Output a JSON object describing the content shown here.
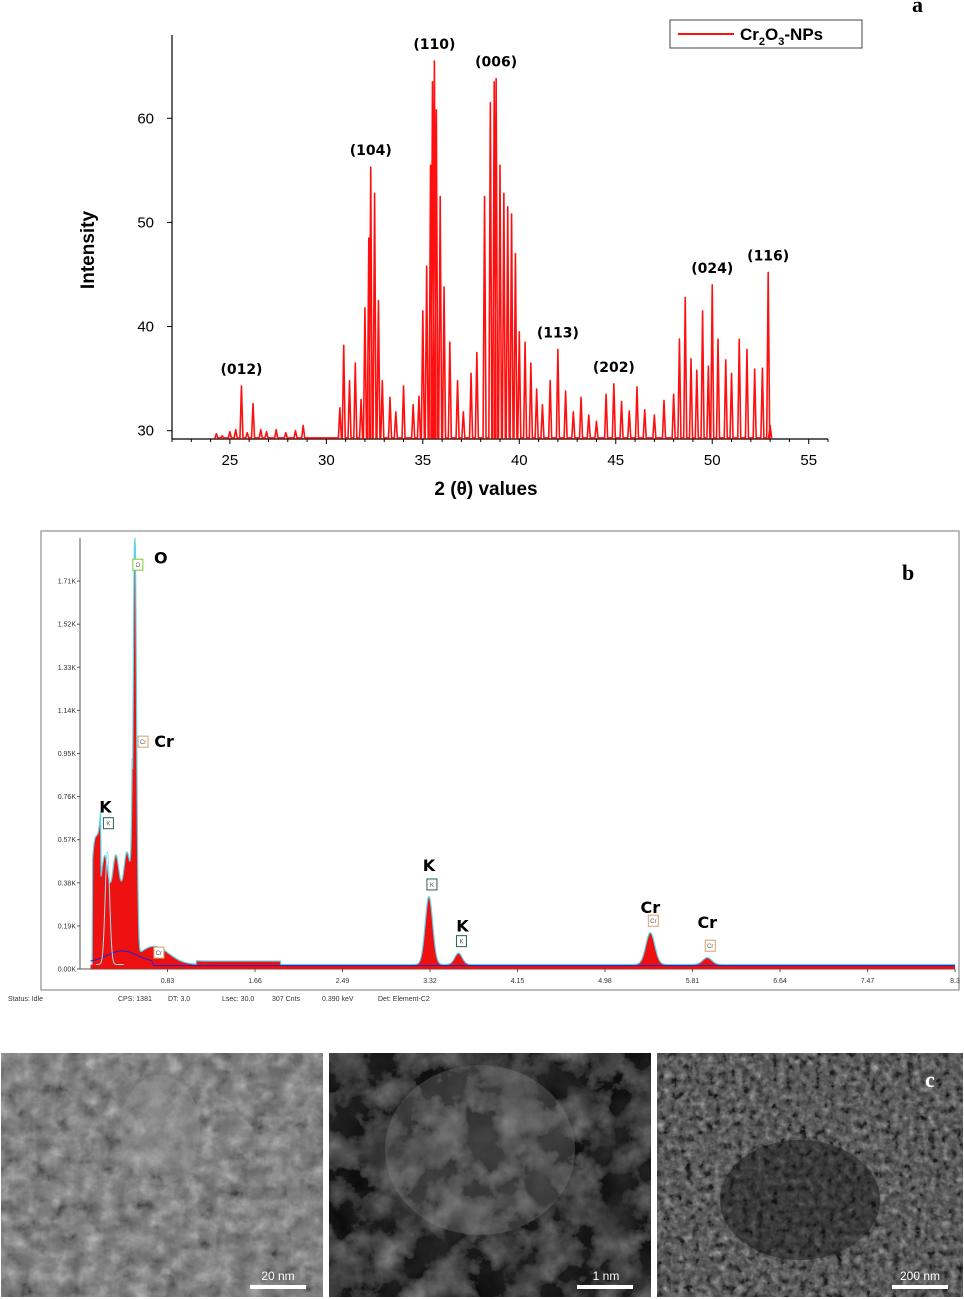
{
  "chart_data": [
    {
      "panel": "a",
      "type": "line",
      "xlabel": "2 (θ) values",
      "ylabel": "Intensity",
      "xlim": [
        22,
        56
      ],
      "ylim": [
        29.2,
        68
      ],
      "xticks": [
        25,
        30,
        35,
        40,
        45,
        50,
        55
      ],
      "yticks": [
        30,
        40,
        50,
        60
      ],
      "legend": {
        "position": "top-right",
        "label_base": "Cr",
        "sub1": "2",
        "mid": "O",
        "sub2": "3",
        "tail": "-NPs"
      },
      "series": [
        {
          "name": "Cr2O3-NPs",
          "color": "#ff1010",
          "peaks": [
            [
              24.3,
              29.7
            ],
            [
              24.6,
              29.5
            ],
            [
              25,
              29.9
            ],
            [
              25.3,
              30.1
            ],
            [
              25.6,
              34.3
            ],
            [
              25.9,
              29.8
            ],
            [
              26.2,
              32.6
            ],
            [
              26.6,
              30.1
            ],
            [
              26.9,
              29.9
            ],
            [
              27.4,
              30.1
            ],
            [
              27.9,
              29.8
            ],
            [
              28.4,
              30
            ],
            [
              28.8,
              30.5
            ],
            [
              30.7,
              32.2
            ],
            [
              30.9,
              38.2
            ],
            [
              31.2,
              34.8
            ],
            [
              31.5,
              36.5
            ],
            [
              31.8,
              33
            ],
            [
              32.0,
              41.8
            ],
            [
              32.2,
              48.5
            ],
            [
              32.3,
              55.3
            ],
            [
              32.5,
              52.8
            ],
            [
              32.7,
              42.5
            ],
            [
              32.9,
              34.8
            ],
            [
              33.3,
              33.2
            ],
            [
              33.6,
              31.8
            ],
            [
              34.0,
              34.3
            ],
            [
              34.5,
              32.5
            ],
            [
              34.8,
              33.3
            ],
            [
              35.0,
              41.5
            ],
            [
              35.2,
              45.8
            ],
            [
              35.4,
              55.5
            ],
            [
              35.5,
              63.5
            ],
            [
              35.6,
              65.5
            ],
            [
              35.7,
              60.8
            ],
            [
              35.9,
              52.5
            ],
            [
              36.1,
              43.8
            ],
            [
              36.4,
              38.5
            ],
            [
              36.8,
              34.8
            ],
            [
              37.1,
              31.8
            ],
            [
              37.5,
              35.5
            ],
            [
              37.8,
              37.5
            ],
            [
              38.2,
              52.5
            ],
            [
              38.5,
              61.5
            ],
            [
              38.7,
              63.5
            ],
            [
              38.8,
              63.8
            ],
            [
              39.0,
              55.5
            ],
            [
              39.2,
              52.8
            ],
            [
              39.4,
              51.5
            ],
            [
              39.6,
              50.8
            ],
            [
              39.8,
              47.0
            ],
            [
              40.0,
              39.5
            ],
            [
              40.3,
              38.5
            ],
            [
              40.6,
              36.5
            ],
            [
              40.9,
              34.0
            ],
            [
              41.2,
              32.5
            ],
            [
              41.6,
              34.8
            ],
            [
              42.0,
              37.8
            ],
            [
              42.4,
              33.8
            ],
            [
              42.8,
              31.8
            ],
            [
              43.2,
              33.2
            ],
            [
              43.6,
              31.5
            ],
            [
              44.0,
              30.9
            ],
            [
              44.5,
              33.5
            ],
            [
              44.9,
              34.5
            ],
            [
              45.3,
              32.8
            ],
            [
              45.7,
              31.9
            ],
            [
              46.1,
              34.2
            ],
            [
              46.5,
              32.0
            ],
            [
              47.0,
              31.5
            ],
            [
              47.5,
              32.9
            ],
            [
              48.0,
              33.5
            ],
            [
              48.3,
              38.8
            ],
            [
              48.6,
              42.8
            ],
            [
              48.9,
              36.9
            ],
            [
              49.2,
              35.8
            ],
            [
              49.5,
              41.5
            ],
            [
              49.8,
              36.2
            ],
            [
              50.0,
              44.0
            ],
            [
              50.3,
              38.8
            ],
            [
              50.7,
              36.8
            ],
            [
              51.0,
              35.5
            ],
            [
              51.4,
              38.8
            ],
            [
              51.8,
              37.8
            ],
            [
              52.2,
              35.9
            ],
            [
              52.6,
              36.0
            ],
            [
              52.9,
              45.2
            ],
            [
              53.0,
              30.5
            ]
          ]
        }
      ],
      "annotations": [
        {
          "label": "(012)",
          "x": 25.6,
          "y": 34.3
        },
        {
          "label": "(104)",
          "x": 32.3,
          "y": 55.3
        },
        {
          "label": "(110)",
          "x": 35.6,
          "y": 65.5
        },
        {
          "label": "(006)",
          "x": 38.8,
          "y": 63.8
        },
        {
          "label": "(113)",
          "x": 42.0,
          "y": 37.8
        },
        {
          "label": "(202)",
          "x": 44.9,
          "y": 34.5
        },
        {
          "label": "(024)",
          "x": 50.0,
          "y": 44.0
        },
        {
          "label": "(116)",
          "x": 52.9,
          "y": 45.2
        }
      ]
    },
    {
      "panel": "b",
      "type": "area",
      "xlim": [
        0,
        8.3
      ],
      "ylim": [
        0,
        1.9
      ],
      "xticks": [
        "0.83",
        "1.66",
        "2.49",
        "3.32",
        "4.15",
        "4.98",
        "5.81",
        "6.64",
        "7.47",
        "8.3"
      ],
      "yticks": [
        "0.00K",
        "0.19K",
        "0.38K",
        "0.57K",
        "0.76K",
        "0.95K",
        "1.14K",
        "1.33K",
        "1.52K",
        "1.71K"
      ],
      "peaks": [
        {
          "element": "O",
          "energy": 0.52,
          "counts": 1.9,
          "tag": "O"
        },
        {
          "element": "Cr",
          "energy": 0.57,
          "counts": 0.95,
          "tag": "Cr"
        },
        {
          "element": "K",
          "energy": 0.26,
          "counts": 0.57,
          "tag": "K"
        },
        {
          "element": "K",
          "energy": 3.31,
          "counts": 0.3,
          "tag": "K"
        },
        {
          "element": "K",
          "energy": 3.59,
          "counts": 0.05,
          "tag": "K"
        },
        {
          "element": "Cr",
          "energy": 5.41,
          "counts": 0.14,
          "tag": "Cr"
        },
        {
          "element": "Cr",
          "energy": 5.95,
          "counts": 0.03,
          "tag": "Cr"
        }
      ],
      "extra_tags": [
        {
          "tag": "Cr",
          "energy": 0.72
        }
      ],
      "status": {
        "state": "Status: Idle",
        "cps": "CPS: 1381",
        "dt": "DT: 3.0",
        "lsec": "Lsec: 30.0",
        "cnts": "307 Cnts",
        "kev": "0.390 keV",
        "det": "Det: Element-C2"
      }
    }
  ],
  "panel_letters": {
    "a": "a",
    "b": "b",
    "c": "c"
  },
  "sem_images": [
    {
      "scale_bar": "20 nm"
    },
    {
      "scale_bar": "1 nm"
    },
    {
      "scale_bar": "200 nm"
    }
  ],
  "colors": {
    "xrd_line": "#ff1010",
    "eds_fill": "#ee1111",
    "eds_outline": "#5fd3e6",
    "eds_background": "#2222cc",
    "k_tag_border": "#2a5f5a",
    "o_tag_border": "#77cc33",
    "cr_tag_border": "#d9a066"
  }
}
